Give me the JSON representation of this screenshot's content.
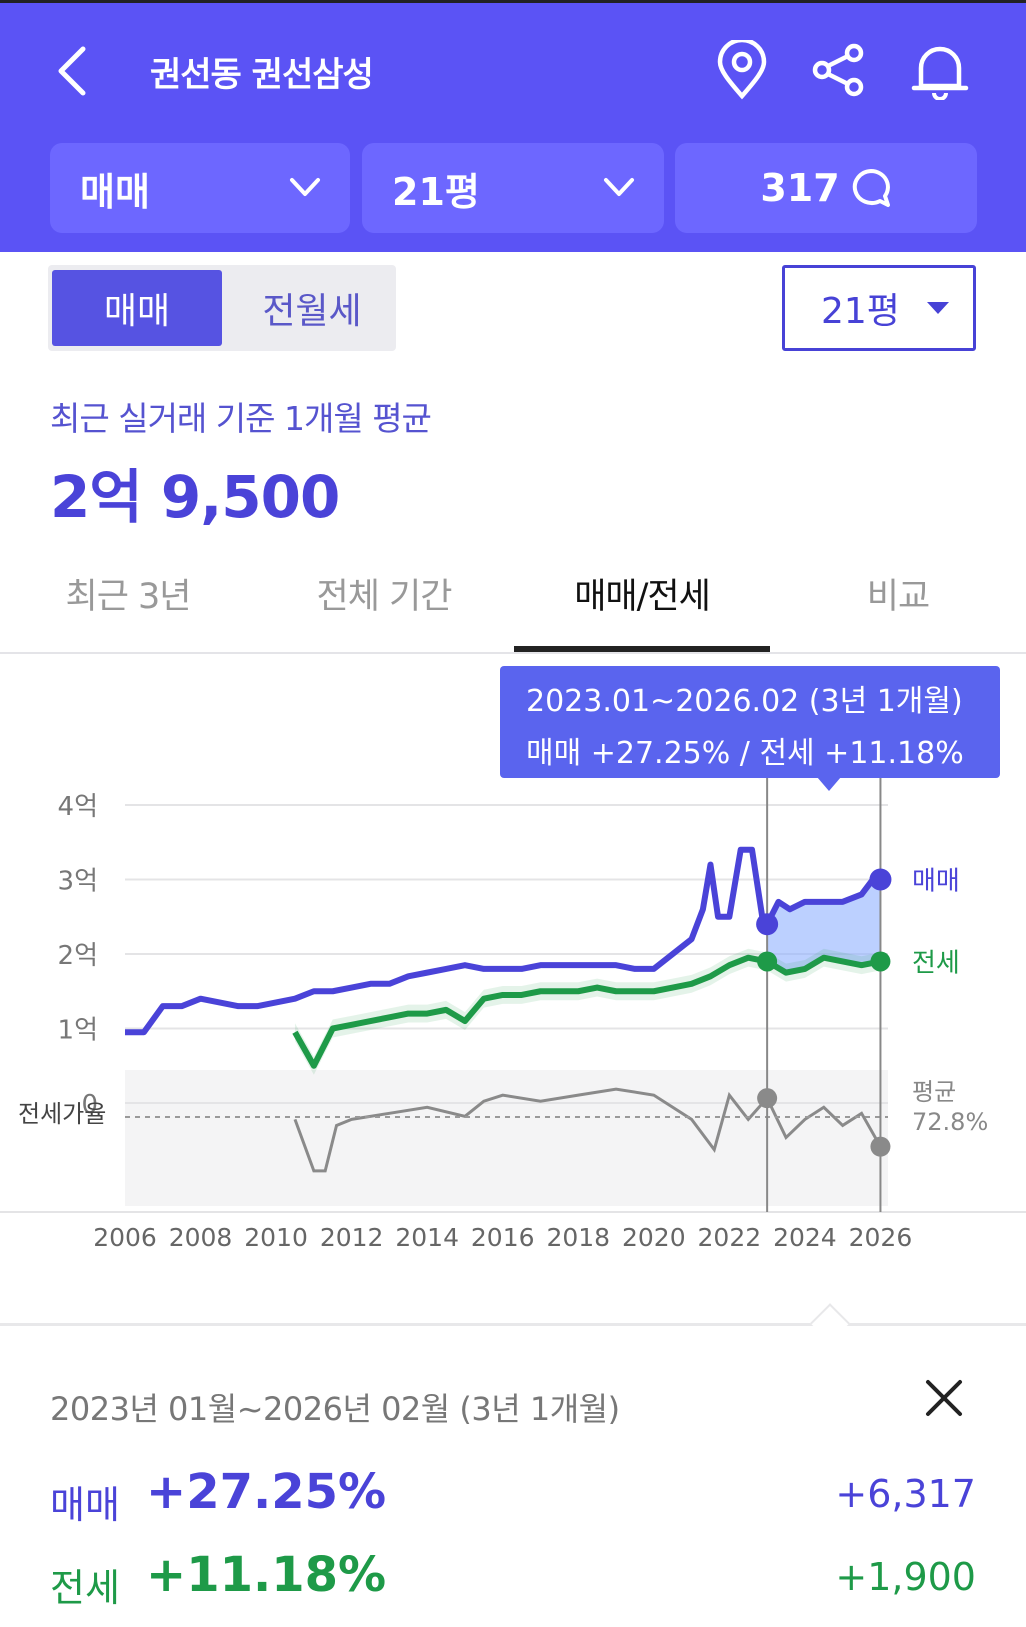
{
  "header": {
    "title": "권선동 권선삼성",
    "filters": {
      "trade": "매매",
      "size": "21평",
      "count": "317"
    }
  },
  "segment": {
    "active": "매매",
    "inactive": "전월세"
  },
  "size_select": "21평",
  "summary": {
    "subtitle": "최근 실거래 기준 1개월 평균",
    "price": "2억 9,500"
  },
  "tabs": [
    {
      "label": "최근 3년"
    },
    {
      "label": "전체 기간"
    },
    {
      "label": "매매/전세"
    },
    {
      "label": "비교"
    }
  ],
  "tooltip": {
    "line1": "2023.01~2026.02 (3년 1개월)",
    "line2": "매매 +27.25%  /  전세 +11.18%"
  },
  "colors": {
    "brand": "#5b53f5",
    "sale": "#4a43d8",
    "jeonse": "#1e9a48",
    "ratio": "#8a8a8a"
  },
  "chart_data": {
    "type": "line",
    "y_ticks": [
      "4억",
      "3억",
      "2억",
      "1억",
      "0"
    ],
    "x_ticks": [
      "2006",
      "2008",
      "2010",
      "2012",
      "2014",
      "2016",
      "2018",
      "2020",
      "2022",
      "2024",
      "2026"
    ],
    "ylim": [
      0,
      4
    ],
    "xlim": [
      2006,
      2026.2
    ],
    "ratio_label": "전세가율",
    "ratio_avg_label": "평균",
    "ratio_avg_value": "72.8%",
    "highlight_range": [
      "2023.01",
      "2026.02"
    ],
    "series": [
      {
        "name": "매매",
        "unit": "억",
        "x": [
          2006.0,
          2006.5,
          2007.0,
          2007.5,
          2008.0,
          2008.5,
          2009.0,
          2009.5,
          2010.0,
          2010.5,
          2011.0,
          2011.5,
          2012.0,
          2012.5,
          2013.0,
          2013.5,
          2014.0,
          2014.5,
          2015.0,
          2015.5,
          2016.0,
          2016.5,
          2017.0,
          2017.5,
          2018.0,
          2018.5,
          2019.0,
          2019.5,
          2020.0,
          2020.5,
          2021.0,
          2021.3,
          2021.5,
          2021.7,
          2022.0,
          2022.3,
          2022.6,
          2022.9,
          2023.0,
          2023.3,
          2023.6,
          2024.0,
          2024.5,
          2025.0,
          2025.5,
          2025.8,
          2026.0
        ],
        "values": [
          0.95,
          0.95,
          1.3,
          1.3,
          1.4,
          1.35,
          1.3,
          1.3,
          1.35,
          1.4,
          1.5,
          1.5,
          1.55,
          1.6,
          1.6,
          1.7,
          1.75,
          1.8,
          1.85,
          1.8,
          1.8,
          1.8,
          1.85,
          1.85,
          1.85,
          1.85,
          1.85,
          1.8,
          1.8,
          2.0,
          2.2,
          2.6,
          3.2,
          2.5,
          2.5,
          3.4,
          3.4,
          2.4,
          2.4,
          2.7,
          2.6,
          2.7,
          2.7,
          2.7,
          2.8,
          3.0,
          3.0
        ]
      },
      {
        "name": "전세",
        "unit": "억",
        "x": [
          2010.5,
          2011.0,
          2011.5,
          2012.0,
          2012.5,
          2013.0,
          2013.5,
          2014.0,
          2014.5,
          2015.0,
          2015.5,
          2016.0,
          2016.5,
          2017.0,
          2017.5,
          2018.0,
          2018.5,
          2019.0,
          2019.5,
          2020.0,
          2020.5,
          2021.0,
          2021.5,
          2022.0,
          2022.5,
          2023.0,
          2023.5,
          2024.0,
          2024.5,
          2025.0,
          2025.5,
          2026.0
        ],
        "values": [
          0.95,
          0.5,
          1.0,
          1.05,
          1.1,
          1.15,
          1.2,
          1.2,
          1.25,
          1.1,
          1.4,
          1.45,
          1.45,
          1.5,
          1.5,
          1.5,
          1.55,
          1.5,
          1.5,
          1.5,
          1.55,
          1.6,
          1.7,
          1.85,
          1.95,
          1.9,
          1.75,
          1.8,
          1.95,
          1.9,
          1.85,
          1.9
        ]
      },
      {
        "name": "전세가율",
        "unit": "%",
        "x": [
          2010.5,
          2011.0,
          2011.3,
          2011.6,
          2012.0,
          2013.0,
          2014.0,
          2015.0,
          2015.5,
          2016.0,
          2017.0,
          2018.0,
          2019.0,
          2020.0,
          2021.0,
          2021.6,
          2022.0,
          2022.5,
          2023.0,
          2023.5,
          2024.0,
          2024.5,
          2025.0,
          2025.5,
          2026.0
        ],
        "values": [
          72,
          55,
          55,
          70,
          72,
          74,
          76,
          73,
          78,
          80,
          78,
          80,
          82,
          80,
          72,
          62,
          80,
          72,
          79,
          66,
          72,
          76,
          70,
          74,
          63
        ]
      }
    ]
  },
  "result": {
    "period": "2023년 01월~2026년 02월 (3년 1개월)",
    "rows": [
      {
        "name": "매매",
        "pct": "+27.25%",
        "amount": "+6,317"
      },
      {
        "name": "전세",
        "pct": "+11.18%",
        "amount": "+1,900"
      }
    ]
  }
}
